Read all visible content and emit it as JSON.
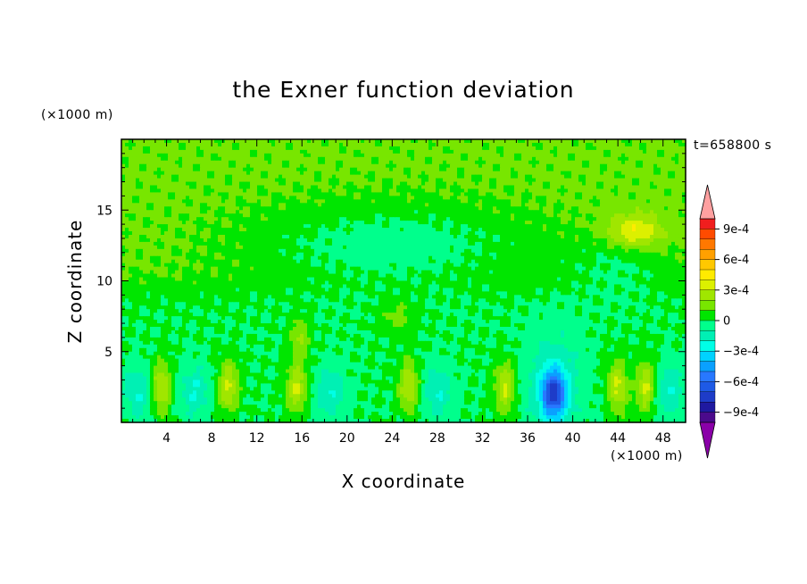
{
  "chart_data": {
    "type": "heatmap",
    "title": "the Exner function deviation",
    "xlabel": "X coordinate",
    "ylabel": "Z coordinate",
    "x_unit": "(×1000 m)",
    "y_unit": "(×1000 m)",
    "time_label": "t=658800 s",
    "xlim": [
      0,
      50
    ],
    "ylim": [
      0,
      20
    ],
    "x_ticks": [
      4,
      8,
      12,
      16,
      20,
      24,
      28,
      32,
      36,
      40,
      44,
      48
    ],
    "y_ticks": [
      5,
      10,
      15
    ],
    "colorbar": {
      "levels": [
        -0.0011,
        -0.001,
        -0.0009,
        -0.0008,
        -0.0007,
        -0.0006,
        -0.0005,
        -0.0004,
        -0.0003,
        -0.0002,
        -0.0001,
        0,
        0.0001,
        0.0002,
        0.0003,
        0.0004,
        0.0005,
        0.0006,
        0.0007,
        0.0008,
        0.0009,
        0.001,
        0.0011
      ],
      "labels": [
        "9e-4",
        "6e-4",
        "3e-4",
        "0",
        "−3e-4",
        "−6e-4",
        "−9e-4"
      ],
      "label_values": [
        0.0009,
        0.0006,
        0.0003,
        0,
        -0.0003,
        -0.0006,
        -0.0009
      ],
      "colors": [
        "#8a00a8",
        "#4b0a8c",
        "#1f19a0",
        "#1e3cc8",
        "#1e5ae6",
        "#2878ff",
        "#0aa0ff",
        "#00d2ff",
        "#00ffe6",
        "#00f0b4",
        "#00ff8c",
        "#00e600",
        "#78e600",
        "#a0e600",
        "#dcf000",
        "#ffeb00",
        "#ffc800",
        "#ffa000",
        "#ff7800",
        "#ff4b00",
        "#f01e1e",
        "#ffa0a0"
      ]
    },
    "field_description_values": {
      "background": 0,
      "upper_band_z_range": [
        10,
        20
      ],
      "strong_negative_center": {
        "x": 38.3,
        "z": 2,
        "value": -0.0006
      },
      "negative_cells_x": [
        1.5,
        6.5,
        18.5,
        28,
        48.5
      ],
      "positive_cells_x": [
        3.5,
        9.5,
        15.5,
        25.5,
        34,
        44,
        46.5
      ]
    }
  }
}
